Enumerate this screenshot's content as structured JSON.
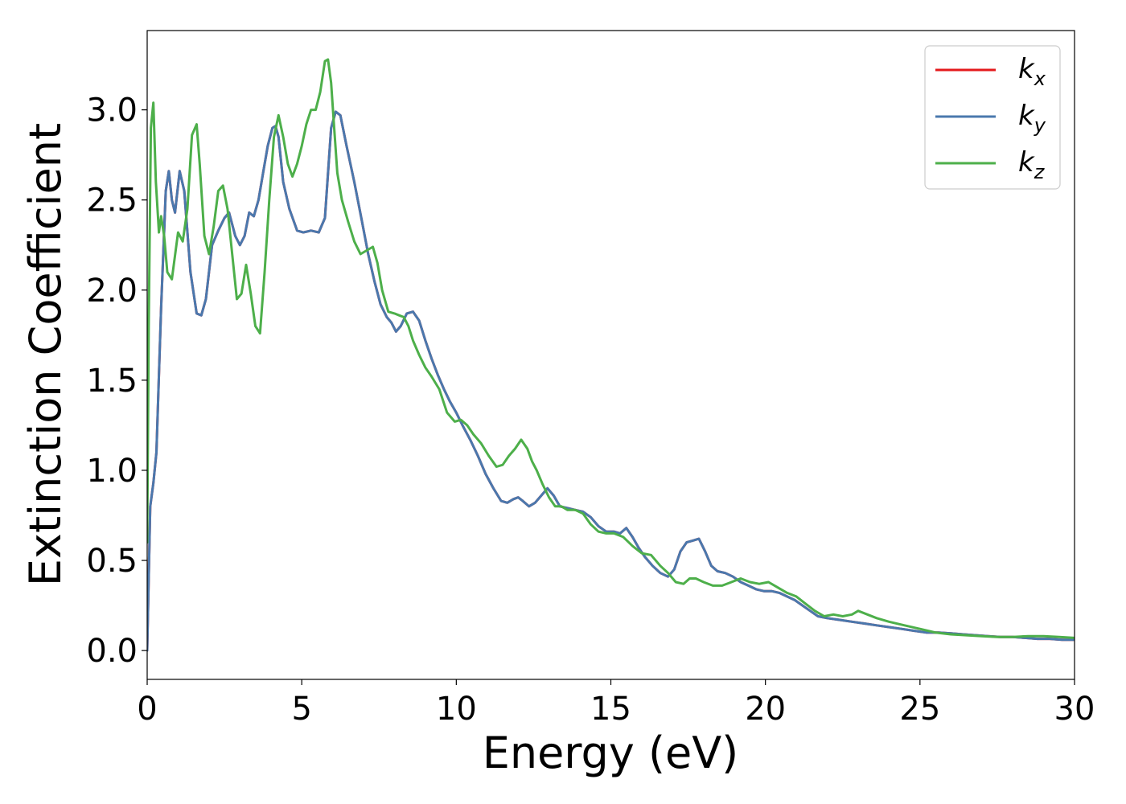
{
  "chart_data": {
    "type": "line",
    "xlabel": "Energy (eV)",
    "ylabel": "Extinction Coefficient",
    "xlim": [
      0,
      30
    ],
    "ylim": [
      -0.16,
      3.44
    ],
    "xticks": [
      "0",
      "5",
      "10",
      "15",
      "20",
      "25",
      "30"
    ],
    "yticks": [
      "0.0",
      "0.5",
      "1.0",
      "1.5",
      "2.0",
      "2.5",
      "3.0"
    ],
    "grid": false,
    "legend": {
      "position": "top-right",
      "entries": [
        {
          "base": "k",
          "sub": "x"
        },
        {
          "base": "k",
          "sub": "y"
        },
        {
          "base": "k",
          "sub": "z"
        }
      ]
    },
    "series": [
      {
        "name": "kx",
        "color": "#e41a1c",
        "x": [
          0,
          0.1,
          0.2,
          0.3,
          0.45,
          0.6,
          0.7,
          0.8,
          0.9,
          1.05,
          1.2,
          1.4,
          1.6,
          1.75,
          1.9,
          2.1,
          2.3,
          2.5,
          2.65,
          2.85,
          3.0,
          3.15,
          3.3,
          3.45,
          3.6,
          3.75,
          3.9,
          4.05,
          4.15,
          4.25,
          4.4,
          4.6,
          4.85,
          5.05,
          5.3,
          5.55,
          5.75,
          5.95,
          6.1,
          6.25,
          6.45,
          6.7,
          6.95,
          7.15,
          7.35,
          7.55,
          7.75,
          7.9,
          8.05,
          8.2,
          8.4,
          8.6,
          8.8,
          9.0,
          9.2,
          9.4,
          9.6,
          9.8,
          10.0,
          10.2,
          10.45,
          10.7,
          10.95,
          11.2,
          11.45,
          11.65,
          11.85,
          12.0,
          12.15,
          12.35,
          12.55,
          12.75,
          12.95,
          13.15,
          13.35,
          13.6,
          13.85,
          14.1,
          14.35,
          14.6,
          14.85,
          15.1,
          15.3,
          15.5,
          15.7,
          15.9,
          16.1,
          16.35,
          16.6,
          16.85,
          17.05,
          17.25,
          17.45,
          17.65,
          17.85,
          18.05,
          18.25,
          18.45,
          18.7,
          18.95,
          19.2,
          19.45,
          19.7,
          19.95,
          20.2,
          20.45,
          20.7,
          20.95,
          21.2,
          21.45,
          21.7,
          22.0,
          22.4,
          22.8,
          23.2,
          23.6,
          24.0,
          24.4,
          24.8,
          25.2,
          25.6,
          26.0,
          26.4,
          26.8,
          27.2,
          27.6,
          28.0,
          28.4,
          28.8,
          29.2,
          29.6,
          30.0
        ],
        "y": [
          0.0,
          0.8,
          0.93,
          1.1,
          1.9,
          2.55,
          2.66,
          2.5,
          2.43,
          2.66,
          2.55,
          2.1,
          1.87,
          1.86,
          1.95,
          2.25,
          2.33,
          2.4,
          2.43,
          2.3,
          2.25,
          2.3,
          2.43,
          2.41,
          2.5,
          2.65,
          2.8,
          2.9,
          2.91,
          2.85,
          2.6,
          2.45,
          2.33,
          2.32,
          2.33,
          2.32,
          2.4,
          2.9,
          2.99,
          2.97,
          2.8,
          2.6,
          2.38,
          2.2,
          2.05,
          1.92,
          1.85,
          1.82,
          1.77,
          1.8,
          1.87,
          1.88,
          1.83,
          1.72,
          1.62,
          1.53,
          1.45,
          1.38,
          1.32,
          1.25,
          1.17,
          1.08,
          0.98,
          0.9,
          0.83,
          0.82,
          0.84,
          0.85,
          0.83,
          0.8,
          0.82,
          0.86,
          0.9,
          0.86,
          0.8,
          0.79,
          0.78,
          0.77,
          0.74,
          0.69,
          0.66,
          0.66,
          0.65,
          0.68,
          0.63,
          0.57,
          0.52,
          0.47,
          0.43,
          0.41,
          0.45,
          0.55,
          0.6,
          0.61,
          0.62,
          0.55,
          0.47,
          0.44,
          0.43,
          0.41,
          0.38,
          0.36,
          0.34,
          0.33,
          0.33,
          0.32,
          0.3,
          0.28,
          0.25,
          0.22,
          0.19,
          0.18,
          0.17,
          0.16,
          0.15,
          0.14,
          0.13,
          0.12,
          0.11,
          0.1,
          0.1,
          0.095,
          0.09,
          0.085,
          0.08,
          0.075,
          0.075,
          0.07,
          0.065,
          0.065,
          0.06,
          0.06
        ],
        "note_hidden": ""
      },
      {
        "name": "ky",
        "color": "#4a78ad",
        "x": [
          0,
          0.1,
          0.2,
          0.3,
          0.45,
          0.6,
          0.7,
          0.8,
          0.9,
          1.05,
          1.2,
          1.4,
          1.6,
          1.75,
          1.9,
          2.1,
          2.3,
          2.5,
          2.65,
          2.85,
          3.0,
          3.15,
          3.3,
          3.45,
          3.6,
          3.75,
          3.9,
          4.05,
          4.15,
          4.25,
          4.4,
          4.6,
          4.85,
          5.05,
          5.3,
          5.55,
          5.75,
          5.95,
          6.1,
          6.25,
          6.45,
          6.7,
          6.95,
          7.15,
          7.35,
          7.55,
          7.75,
          7.9,
          8.05,
          8.2,
          8.4,
          8.6,
          8.8,
          9.0,
          9.2,
          9.4,
          9.6,
          9.8,
          10.0,
          10.2,
          10.45,
          10.7,
          10.95,
          11.2,
          11.45,
          11.65,
          11.85,
          12.0,
          12.15,
          12.35,
          12.55,
          12.75,
          12.95,
          13.15,
          13.35,
          13.6,
          13.85,
          14.1,
          14.35,
          14.6,
          14.85,
          15.1,
          15.3,
          15.5,
          15.7,
          15.9,
          16.1,
          16.35,
          16.6,
          16.85,
          17.05,
          17.25,
          17.45,
          17.65,
          17.85,
          18.05,
          18.25,
          18.45,
          18.7,
          18.95,
          19.2,
          19.45,
          19.7,
          19.95,
          20.2,
          20.45,
          20.7,
          20.95,
          21.2,
          21.45,
          21.7,
          22.0,
          22.4,
          22.8,
          23.2,
          23.6,
          24.0,
          24.4,
          24.8,
          25.2,
          25.6,
          26.0,
          26.4,
          26.8,
          27.2,
          27.6,
          28.0,
          28.4,
          28.8,
          29.2,
          29.6,
          30.0
        ],
        "y": [
          0.0,
          0.8,
          0.93,
          1.1,
          1.9,
          2.55,
          2.66,
          2.5,
          2.43,
          2.66,
          2.55,
          2.1,
          1.87,
          1.86,
          1.95,
          2.25,
          2.33,
          2.4,
          2.43,
          2.3,
          2.25,
          2.3,
          2.43,
          2.41,
          2.5,
          2.65,
          2.8,
          2.9,
          2.91,
          2.85,
          2.6,
          2.45,
          2.33,
          2.32,
          2.33,
          2.32,
          2.4,
          2.9,
          2.99,
          2.97,
          2.8,
          2.6,
          2.38,
          2.2,
          2.05,
          1.92,
          1.85,
          1.82,
          1.77,
          1.8,
          1.87,
          1.88,
          1.83,
          1.72,
          1.62,
          1.53,
          1.45,
          1.38,
          1.32,
          1.25,
          1.17,
          1.08,
          0.98,
          0.9,
          0.83,
          0.82,
          0.84,
          0.85,
          0.83,
          0.8,
          0.82,
          0.86,
          0.9,
          0.86,
          0.8,
          0.79,
          0.78,
          0.77,
          0.74,
          0.69,
          0.66,
          0.66,
          0.65,
          0.68,
          0.63,
          0.57,
          0.52,
          0.47,
          0.43,
          0.41,
          0.45,
          0.55,
          0.6,
          0.61,
          0.62,
          0.55,
          0.47,
          0.44,
          0.43,
          0.41,
          0.38,
          0.36,
          0.34,
          0.33,
          0.33,
          0.32,
          0.3,
          0.28,
          0.25,
          0.22,
          0.19,
          0.18,
          0.17,
          0.16,
          0.15,
          0.14,
          0.13,
          0.12,
          0.11,
          0.1,
          0.1,
          0.095,
          0.09,
          0.085,
          0.08,
          0.075,
          0.075,
          0.07,
          0.065,
          0.065,
          0.06,
          0.06
        ]
      },
      {
        "name": "kz",
        "color": "#4daf4a",
        "x": [
          0,
          0.05,
          0.12,
          0.2,
          0.28,
          0.38,
          0.45,
          0.55,
          0.65,
          0.8,
          1.0,
          1.15,
          1.3,
          1.45,
          1.6,
          1.7,
          1.85,
          2.0,
          2.15,
          2.3,
          2.45,
          2.6,
          2.75,
          2.9,
          3.05,
          3.2,
          3.35,
          3.5,
          3.65,
          3.8,
          3.95,
          4.1,
          4.25,
          4.4,
          4.55,
          4.7,
          4.85,
          5.0,
          5.15,
          5.3,
          5.45,
          5.6,
          5.75,
          5.85,
          5.95,
          6.05,
          6.15,
          6.3,
          6.5,
          6.7,
          6.9,
          7.1,
          7.3,
          7.45,
          7.6,
          7.8,
          8.0,
          8.15,
          8.3,
          8.45,
          8.6,
          8.8,
          9.0,
          9.2,
          9.45,
          9.7,
          9.95,
          10.15,
          10.35,
          10.55,
          10.8,
          11.05,
          11.3,
          11.5,
          11.7,
          11.9,
          12.1,
          12.3,
          12.45,
          12.6,
          12.8,
          13.0,
          13.2,
          13.4,
          13.6,
          13.85,
          14.1,
          14.35,
          14.6,
          14.85,
          15.1,
          15.4,
          15.7,
          16.0,
          16.3,
          16.6,
          16.85,
          17.1,
          17.35,
          17.55,
          17.75,
          18.0,
          18.3,
          18.6,
          18.9,
          19.2,
          19.5,
          19.8,
          20.1,
          20.4,
          20.7,
          21.0,
          21.3,
          21.6,
          21.9,
          22.2,
          22.5,
          22.8,
          23.0,
          23.3,
          23.6,
          24.0,
          24.5,
          25.0,
          25.5,
          26.0,
          26.5,
          27.0,
          27.5,
          28.0,
          28.5,
          29.0,
          29.5,
          30.0
        ],
        "y": [
          0.6,
          1.8,
          2.9,
          3.04,
          2.6,
          2.32,
          2.41,
          2.3,
          2.1,
          2.06,
          2.32,
          2.27,
          2.45,
          2.86,
          2.92,
          2.7,
          2.3,
          2.2,
          2.35,
          2.55,
          2.58,
          2.45,
          2.2,
          1.95,
          1.98,
          2.14,
          1.98,
          1.8,
          1.76,
          2.1,
          2.5,
          2.85,
          2.97,
          2.85,
          2.7,
          2.63,
          2.7,
          2.8,
          2.92,
          3.0,
          3.0,
          3.1,
          3.27,
          3.28,
          3.15,
          2.9,
          2.65,
          2.5,
          2.38,
          2.27,
          2.2,
          2.22,
          2.24,
          2.15,
          2.0,
          1.88,
          1.87,
          1.86,
          1.85,
          1.8,
          1.72,
          1.64,
          1.57,
          1.52,
          1.45,
          1.32,
          1.27,
          1.28,
          1.25,
          1.2,
          1.15,
          1.08,
          1.02,
          1.03,
          1.08,
          1.12,
          1.17,
          1.12,
          1.05,
          1.0,
          0.92,
          0.85,
          0.8,
          0.8,
          0.78,
          0.78,
          0.76,
          0.7,
          0.66,
          0.65,
          0.65,
          0.63,
          0.58,
          0.54,
          0.53,
          0.47,
          0.43,
          0.38,
          0.37,
          0.4,
          0.4,
          0.38,
          0.36,
          0.36,
          0.38,
          0.4,
          0.38,
          0.37,
          0.38,
          0.35,
          0.32,
          0.3,
          0.26,
          0.22,
          0.19,
          0.2,
          0.19,
          0.2,
          0.22,
          0.2,
          0.18,
          0.16,
          0.14,
          0.12,
          0.1,
          0.09,
          0.085,
          0.08,
          0.075,
          0.075,
          0.08,
          0.08,
          0.075,
          0.07
        ]
      }
    ]
  }
}
